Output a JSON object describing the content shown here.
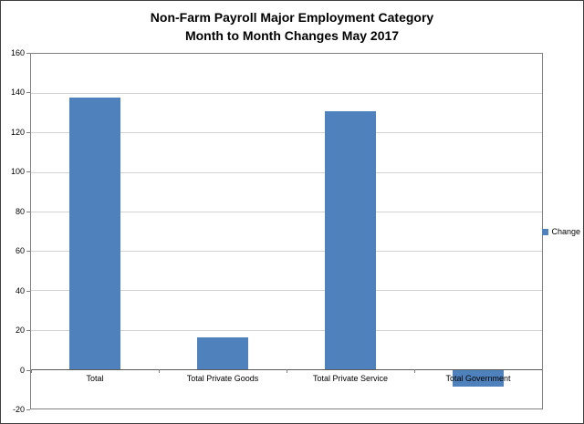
{
  "chart": {
    "title_line1": "Non-Farm Payroll Major Employment Category",
    "title_line2": "Month to Month Changes May 2017",
    "legend": {
      "label": "Change",
      "color": "#4F81BD"
    }
  },
  "chart_data": {
    "type": "bar",
    "categories": [
      "Total",
      "Total Private Goods",
      "Total Private Service",
      "Total Government"
    ],
    "values": [
      138,
      16,
      131,
      -9
    ],
    "series_name": "Change",
    "title": "Non-Farm Payroll Major Employment Category Month to Month Changes May 2017",
    "xlabel": "",
    "ylabel": "",
    "ylim": [
      -20,
      160
    ],
    "ytick_step": 20,
    "bar_color": "#4F81BD",
    "gap_ratio": 0.4,
    "grid": true,
    "legend_position": "right"
  }
}
